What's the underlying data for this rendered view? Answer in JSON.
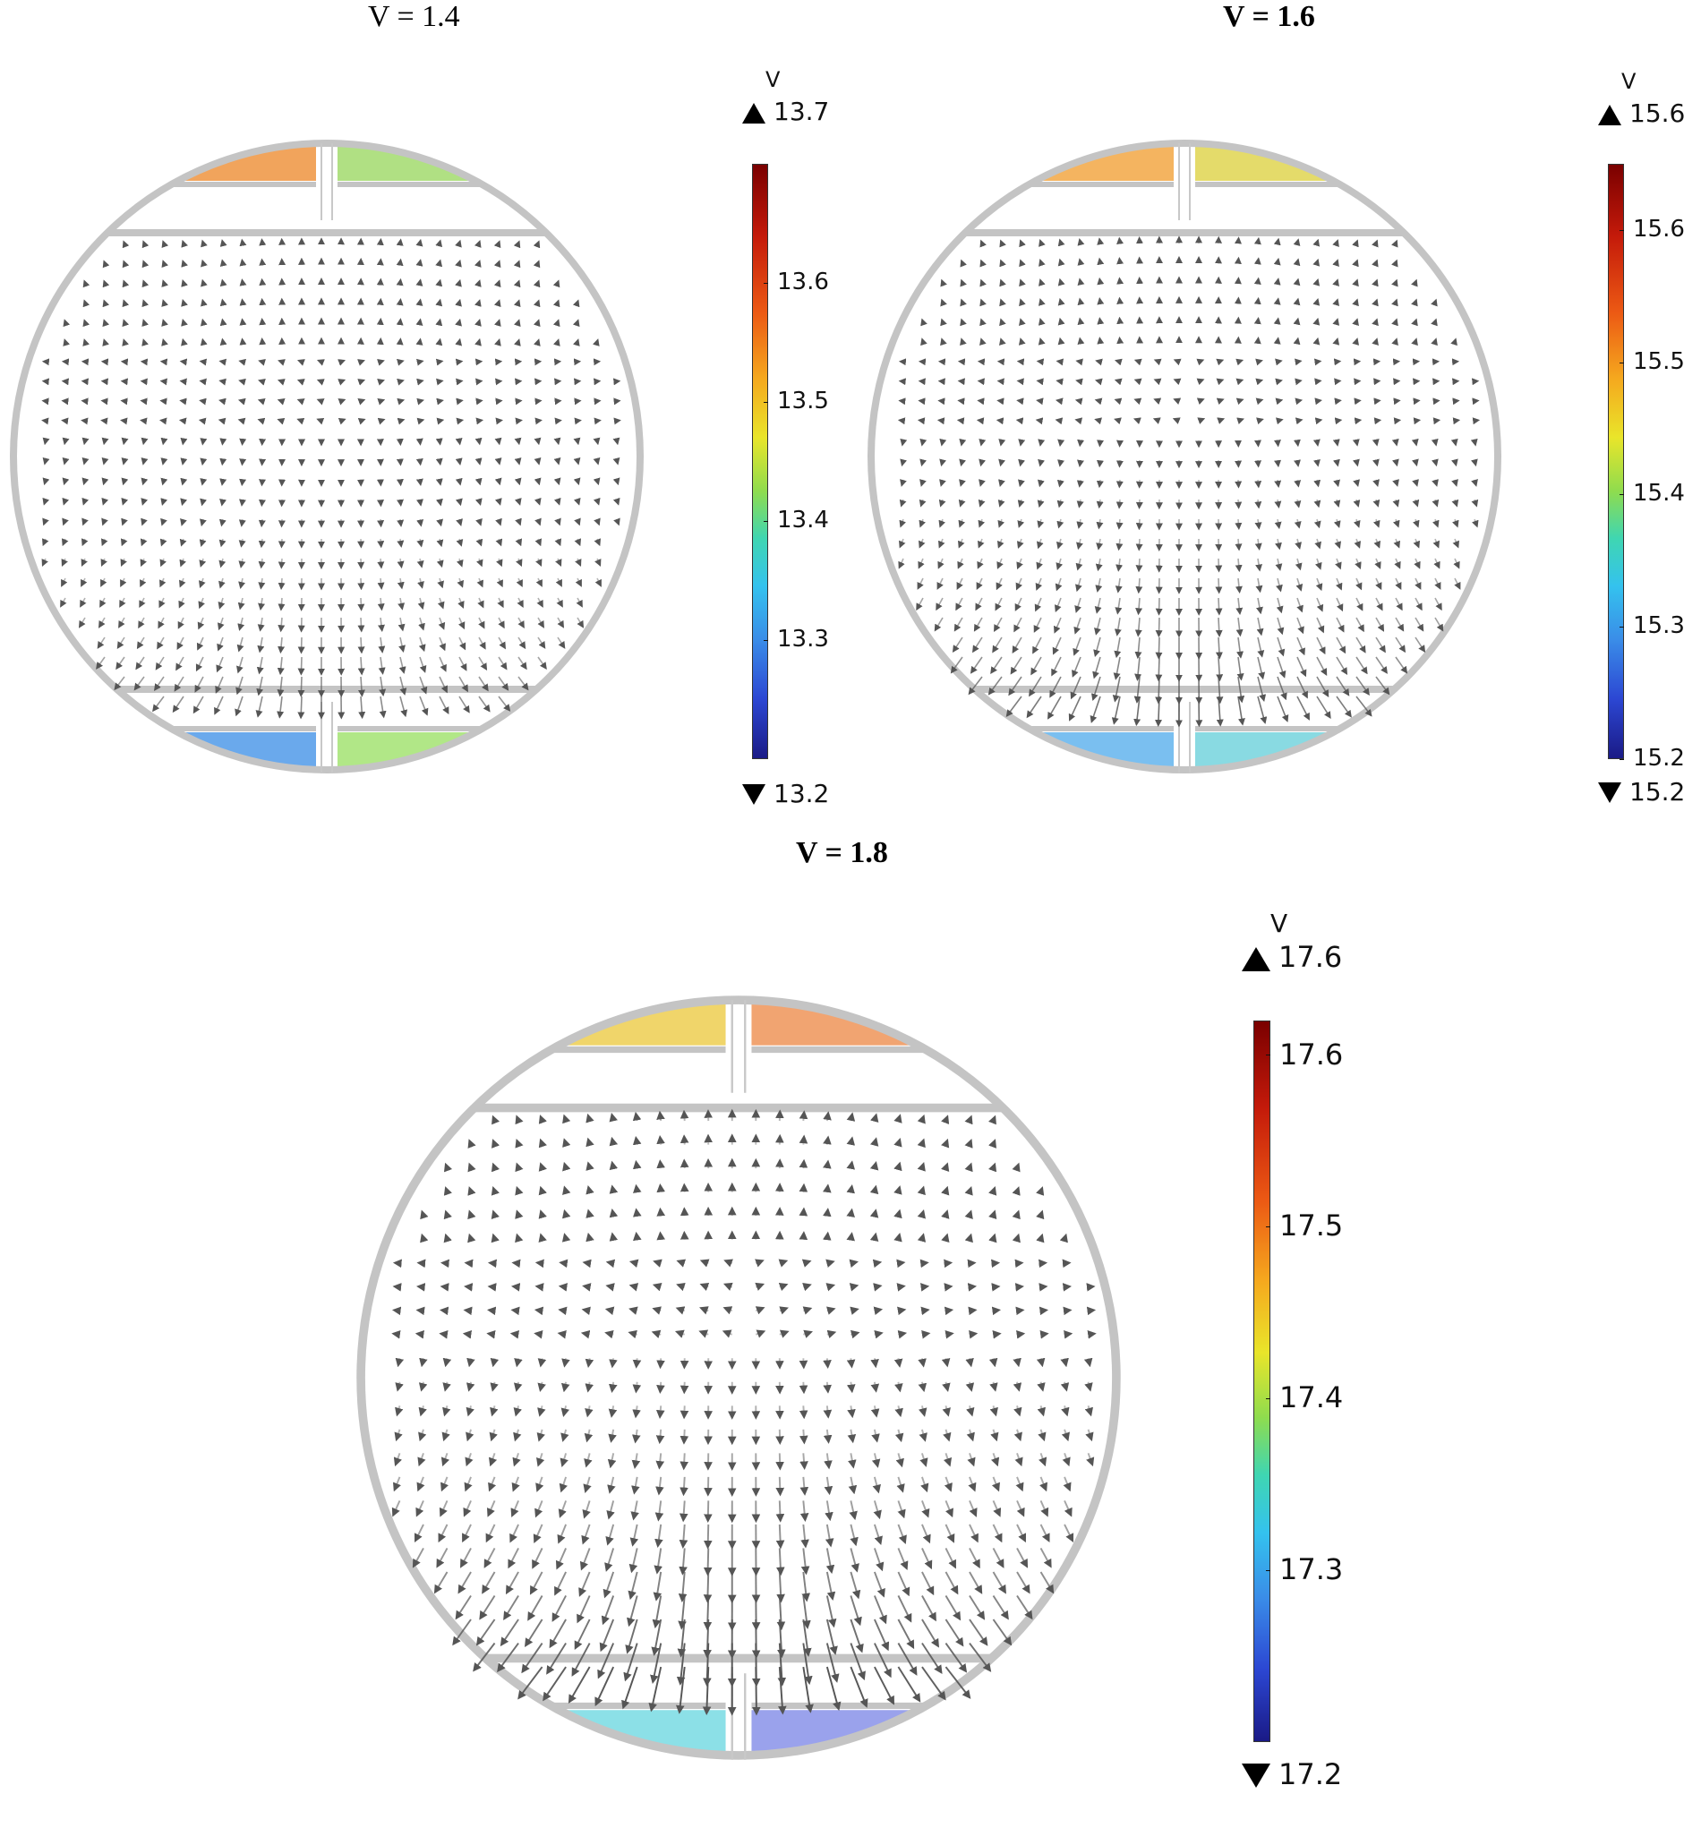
{
  "panels": [
    {
      "title": "V = 1.4",
      "colorbar": {
        "unit": "V",
        "max_label": "13.7",
        "min_label": "13.2",
        "ticks": [
          "13.6",
          "13.5",
          "13.4",
          "13.3"
        ],
        "range": [
          13.2,
          13.7
        ]
      },
      "arrow_strength": 0.55,
      "pads": {
        "top_left": "#ef9a4a",
        "top_right": "#a7dd76",
        "bottom_left": "#5aa0ea",
        "bottom_right": "#a8e47a"
      }
    },
    {
      "title": "V = 1.6",
      "colorbar": {
        "unit": "V",
        "max_label": "15.6",
        "min_label": "15.2",
        "ticks": [
          "15.6",
          "15.5",
          "15.4",
          "15.3",
          "15.2"
        ],
        "range": [
          15.2,
          15.65
        ]
      },
      "arrow_strength": 0.75,
      "pads": {
        "top_left": "#f3ac4f",
        "top_right": "#e1d75a",
        "bottom_left": "#6cb8ee",
        "bottom_right": "#7cd6df"
      }
    },
    {
      "title": "V = 1.8",
      "colorbar": {
        "unit": "V",
        "max_label": "17.6",
        "min_label": "17.2",
        "ticks": [
          "17.6",
          "17.5",
          "17.4",
          "17.3"
        ],
        "range": [
          17.2,
          17.62
        ]
      },
      "arrow_strength": 1.0,
      "pads": {
        "top_left": "#eed05a",
        "top_right": "#f09a62",
        "bottom_left": "#7fdde4",
        "bottom_right": "#8f98ea"
      }
    }
  ],
  "icons": {
    "max_marker": "triangle-up-icon",
    "min_marker": "triangle-down-icon"
  }
}
